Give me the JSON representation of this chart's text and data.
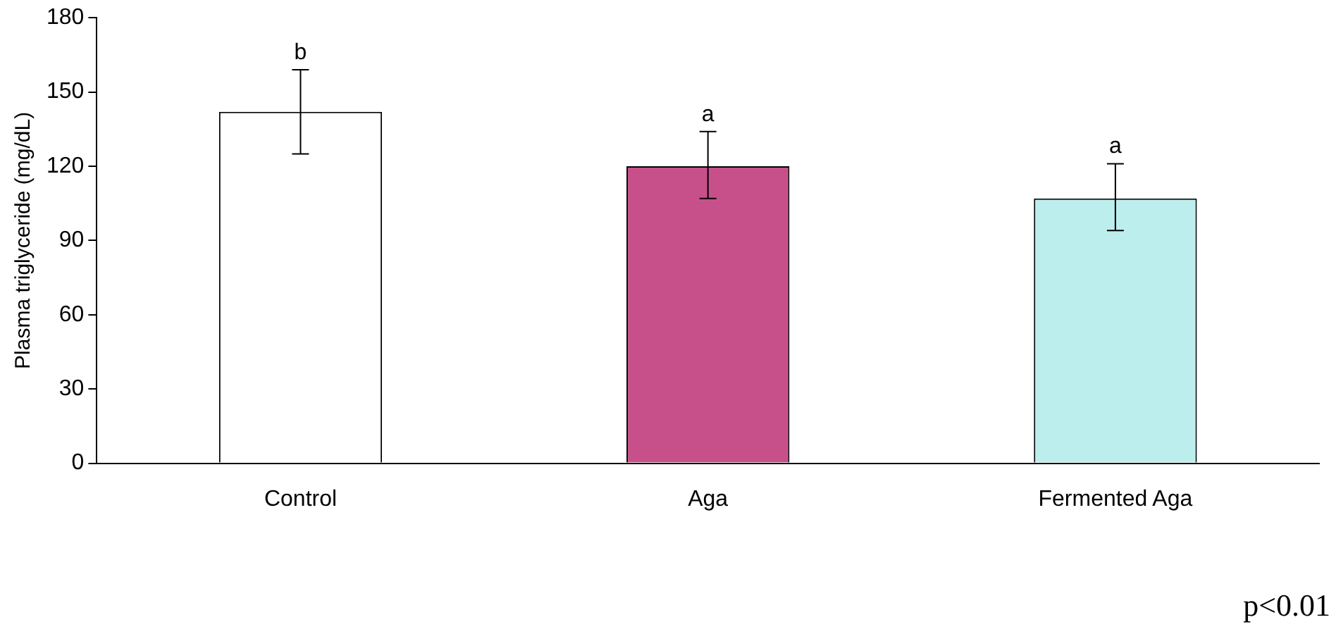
{
  "chart_data": {
    "type": "bar",
    "ylabel": "Plasma triglyceride (mg/dL)",
    "categories": [
      "Control",
      "Aga",
      "Fermented Aga"
    ],
    "values": [
      142,
      120,
      107
    ],
    "colors": [
      "#ffffff",
      "#c8508a",
      "#bdeeee"
    ],
    "errors": [
      [
        125,
        159
      ],
      [
        107,
        134
      ],
      [
        94,
        121
      ]
    ],
    "ylim": [
      0,
      180
    ],
    "yticks": [
      0,
      30,
      60,
      90,
      120,
      150,
      180
    ],
    "grid": false,
    "legend": false,
    "annotations": [
      {
        "text": "b",
        "x": "Control",
        "y": 159
      },
      {
        "text": "a",
        "x": "Aga",
        "y": 134
      },
      {
        "text": "a",
        "x": "Fermented Aga",
        "y": 121
      },
      "p<0.01"
    ]
  }
}
